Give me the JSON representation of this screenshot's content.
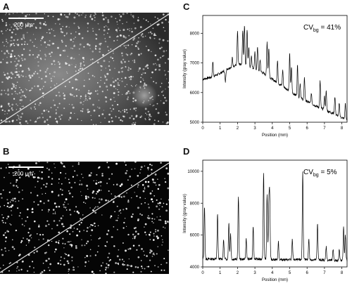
{
  "panels": {
    "a": {
      "letter": "A",
      "scale_bar_label": "200 µm"
    },
    "b": {
      "letter": "B",
      "scale_bar_label": "200 µm"
    },
    "c": {
      "letter": "C"
    },
    "d": {
      "letter": "D"
    }
  },
  "colors": {
    "trace": "#000000",
    "micrograph_dark": "#000000",
    "micrograph_halo": "#7a7a7a",
    "spot": "#ffffff",
    "line_scan": "#e0e0e0"
  },
  "chart_data": [
    {
      "type": "line",
      "panel": "C",
      "annotation": {
        "prefix": "CV",
        "subscript": "bg",
        "value": " =  41%"
      },
      "xlabel": "Position (mm)",
      "ylabel": "Intensity (gray value)",
      "xlim": [
        0,
        8.3
      ],
      "ylim": [
        5000,
        8600
      ],
      "xticks": [
        0,
        1,
        2,
        3,
        4,
        5,
        6,
        7,
        8
      ],
      "yticks": [
        5000,
        6000,
        7000,
        8000
      ],
      "baseline": [
        [
          0,
          6450
        ],
        [
          0.5,
          6520
        ],
        [
          1.0,
          6650
        ],
        [
          1.5,
          6820
        ],
        [
          2.0,
          6950
        ],
        [
          2.5,
          6930
        ],
        [
          3.0,
          6800
        ],
        [
          3.5,
          6650
        ],
        [
          4.0,
          6450
        ],
        [
          4.5,
          6250
        ],
        [
          5.0,
          6050
        ],
        [
          5.5,
          5850
        ],
        [
          6.0,
          5700
        ],
        [
          6.5,
          5550
        ],
        [
          7.0,
          5420
        ],
        [
          7.5,
          5300
        ],
        [
          8.0,
          5150
        ],
        [
          8.3,
          5100
        ]
      ],
      "peaks": [
        [
          0.58,
          500
        ],
        [
          1.3,
          -400
        ],
        [
          1.7,
          300
        ],
        [
          2.0,
          1100
        ],
        [
          2.3,
          1150
        ],
        [
          2.4,
          1350
        ],
        [
          2.55,
          1200
        ],
        [
          2.65,
          650
        ],
        [
          2.8,
          400
        ],
        [
          3.0,
          550
        ],
        [
          3.15,
          800
        ],
        [
          3.3,
          400
        ],
        [
          3.7,
          1150
        ],
        [
          3.8,
          950
        ],
        [
          4.3,
          750
        ],
        [
          4.6,
          550
        ],
        [
          5.0,
          1250
        ],
        [
          5.1,
          850
        ],
        [
          5.45,
          1050
        ],
        [
          5.6,
          500
        ],
        [
          5.85,
          750
        ],
        [
          6.25,
          350
        ],
        [
          6.75,
          900
        ],
        [
          7.0,
          450
        ],
        [
          7.1,
          650
        ],
        [
          7.6,
          600
        ],
        [
          7.85,
          450
        ],
        [
          8.2,
          500
        ]
      ]
    },
    {
      "type": "line",
      "panel": "D",
      "annotation": {
        "prefix": "CV",
        "subscript": "bg",
        "value": " =  5%"
      },
      "xlabel": "Position (mm)",
      "ylabel": "Intensity (gray value)",
      "xlim": [
        0,
        8.3
      ],
      "ylim": [
        4000,
        10700
      ],
      "xticks": [
        0,
        1,
        2,
        3,
        4,
        5,
        6,
        7,
        8
      ],
      "yticks": [
        4000,
        6000,
        8000,
        10000
      ],
      "baseline": [
        [
          0,
          4500
        ],
        [
          1,
          4500
        ],
        [
          2,
          4480
        ],
        [
          3,
          4500
        ],
        [
          4,
          4470
        ],
        [
          5,
          4450
        ],
        [
          6,
          4450
        ],
        [
          7,
          4430
        ],
        [
          8,
          4400
        ],
        [
          8.3,
          4420
        ]
      ],
      "peaks": [
        [
          0.1,
          3300
        ],
        [
          0.85,
          2800
        ],
        [
          1.2,
          1200
        ],
        [
          1.5,
          2300
        ],
        [
          1.6,
          1600
        ],
        [
          2.05,
          4000
        ],
        [
          2.5,
          1300
        ],
        [
          2.9,
          2100
        ],
        [
          3.5,
          5400
        ],
        [
          3.7,
          4100
        ],
        [
          3.8,
          3400
        ],
        [
          3.85,
          3900
        ],
        [
          4.35,
          1100
        ],
        [
          5.15,
          1300
        ],
        [
          5.75,
          5500
        ],
        [
          6.1,
          1300
        ],
        [
          6.6,
          2300
        ],
        [
          7.1,
          850
        ],
        [
          7.5,
          700
        ],
        [
          7.85,
          700
        ],
        [
          8.1,
          2100
        ],
        [
          8.2,
          1600
        ]
      ]
    }
  ]
}
